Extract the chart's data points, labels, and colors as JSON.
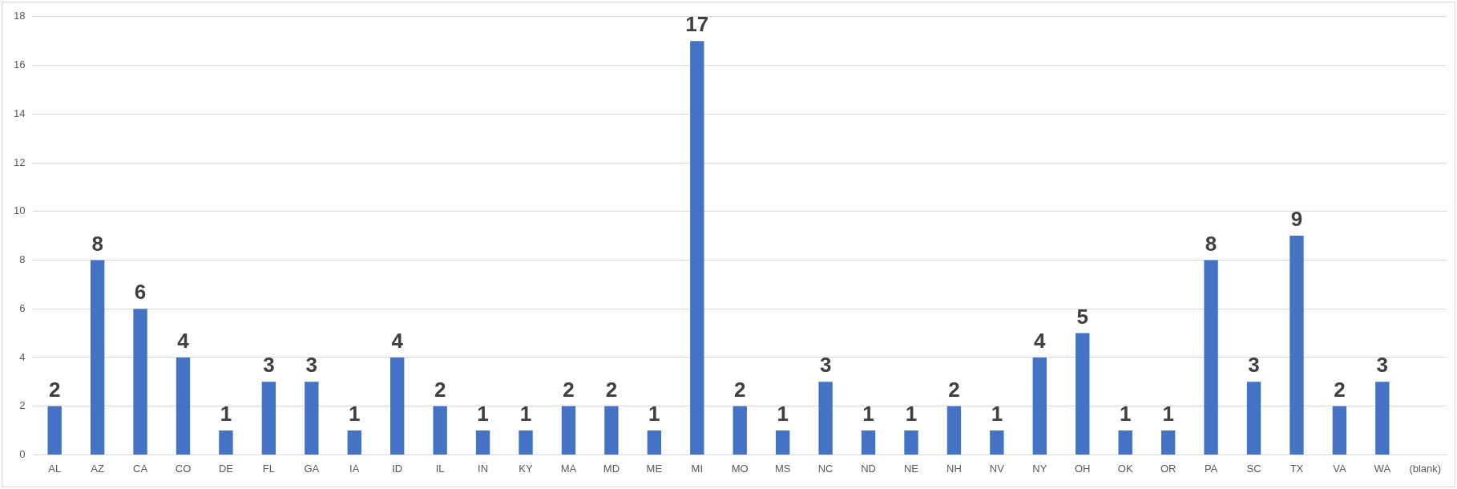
{
  "chart_data": {
    "type": "bar",
    "categories": [
      "AL",
      "AZ",
      "CA",
      "CO",
      "DE",
      "FL",
      "GA",
      "IA",
      "ID",
      "IL",
      "IN",
      "KY",
      "MA",
      "MD",
      "ME",
      "MI",
      "MO",
      "MS",
      "NC",
      "ND",
      "NE",
      "NH",
      "NV",
      "NY",
      "OH",
      "OK",
      "OR",
      "PA",
      "SC",
      "TX",
      "VA",
      "WA",
      "(blank)"
    ],
    "values": [
      2,
      8,
      6,
      4,
      1,
      3,
      3,
      1,
      4,
      2,
      1,
      1,
      2,
      2,
      1,
      17,
      2,
      1,
      3,
      1,
      1,
      2,
      1,
      4,
      5,
      1,
      1,
      8,
      3,
      9,
      2,
      3,
      null
    ],
    "color": "#4472c4",
    "ylim": [
      0,
      18
    ],
    "yticks": [
      0,
      2,
      4,
      6,
      8,
      10,
      12,
      14,
      16,
      18
    ],
    "grid": "y",
    "data_labels": true
  }
}
